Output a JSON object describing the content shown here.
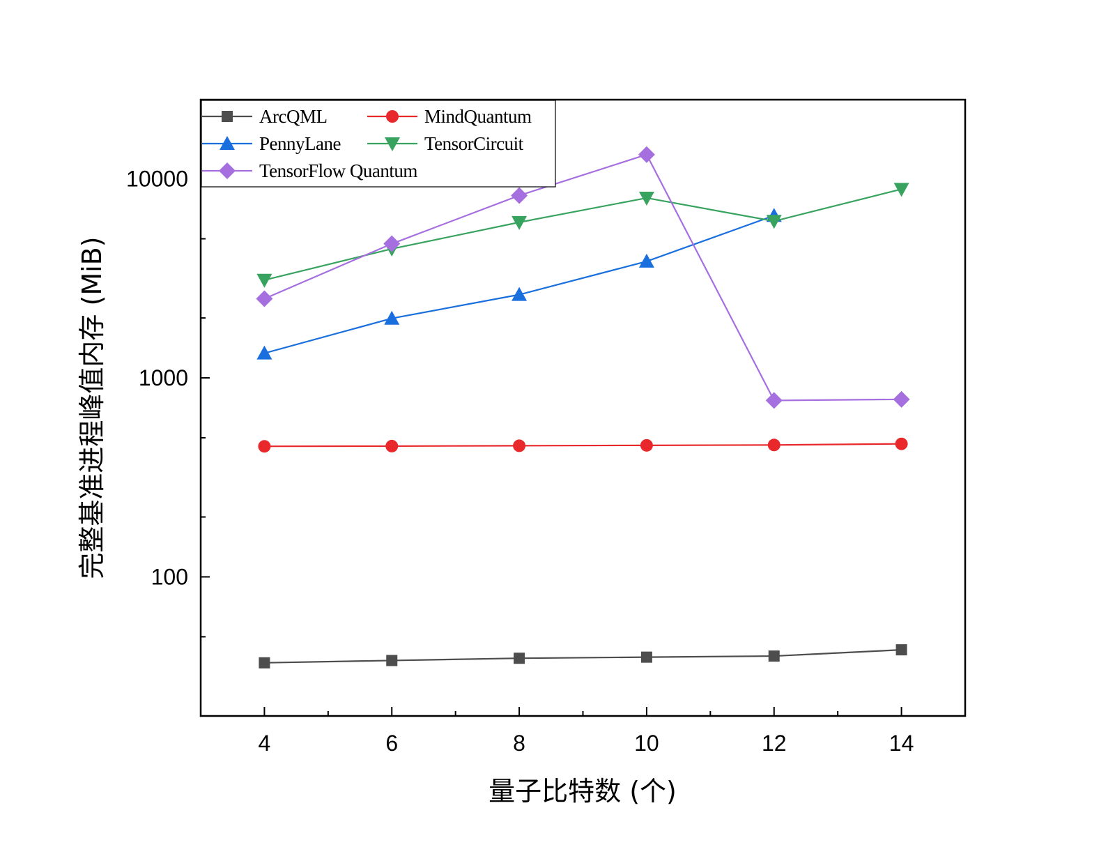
{
  "chart_data": {
    "type": "line",
    "title": "",
    "xlabel": "量子比特数 (个)",
    "ylabel": "完整基准进程峰值内存 (MiB)",
    "yscale": "log",
    "xlim": [
      3,
      15
    ],
    "ylim": [
      20,
      25000
    ],
    "xticks": [
      4,
      6,
      8,
      10,
      12,
      14
    ],
    "xtick_labels": [
      "4",
      "6",
      "8",
      "10",
      "12",
      "14"
    ],
    "yticks": [
      100,
      1000,
      10000
    ],
    "ytick_labels": [
      "100",
      "1000",
      "10000"
    ],
    "grid": false,
    "legend_position": "top-left",
    "x": [
      4,
      6,
      8,
      10,
      12,
      14
    ],
    "series": [
      {
        "name": "ArcQML",
        "color": "#4d4d4d",
        "marker": "square",
        "values": [
          37,
          38,
          39,
          39.5,
          40,
          43
        ]
      },
      {
        "name": "MindQuantum",
        "color": "#e8282b",
        "marker": "circle",
        "values": [
          453,
          454,
          456,
          458,
          460,
          466
        ]
      },
      {
        "name": "PennyLane",
        "color": "#1a6fdf",
        "marker": "triangle-up",
        "values": [
          1330,
          1990,
          2620,
          3850,
          6540,
          null
        ]
      },
      {
        "name": "TensorCircuit",
        "color": "#37a35e",
        "marker": "triangle-down",
        "values": [
          3100,
          4450,
          6050,
          8020,
          6130,
          8880
        ]
      },
      {
        "name": "TensorFlow Quantum",
        "color": "#a66fe0",
        "marker": "diamond",
        "values": [
          2500,
          4720,
          8250,
          13250,
          770,
          780
        ]
      }
    ]
  }
}
